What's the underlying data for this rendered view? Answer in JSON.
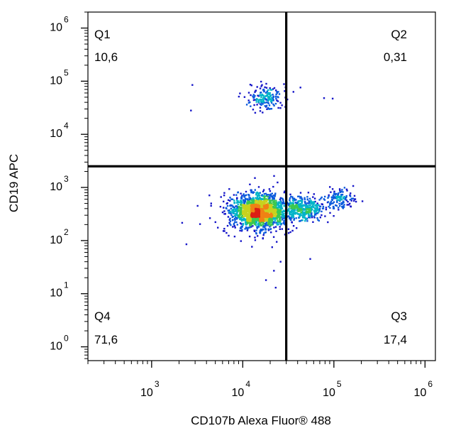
{
  "chart_data": {
    "type": "scatter",
    "title": "",
    "xlabel": "CD107b Alexa Fluor® 488",
    "ylabel": "CD19 APC",
    "x_scale": "log",
    "y_scale": "log",
    "xlim": [
      200,
      1300000
    ],
    "ylim": [
      0.55,
      2000000
    ],
    "x_ticks": [
      {
        "base": "10",
        "exp": "3",
        "value": 1000
      },
      {
        "base": "10",
        "exp": "4",
        "value": 10000
      },
      {
        "base": "10",
        "exp": "5",
        "value": 100000
      },
      {
        "base": "10",
        "exp": "6",
        "value": 1000000
      }
    ],
    "y_ticks": [
      {
        "base": "10",
        "exp": "0",
        "value": 1
      },
      {
        "base": "10",
        "exp": "1",
        "value": 10
      },
      {
        "base": "10",
        "exp": "2",
        "value": 100
      },
      {
        "base": "10",
        "exp": "3",
        "value": 1000
      },
      {
        "base": "10",
        "exp": "4",
        "value": 10000
      },
      {
        "base": "10",
        "exp": "5",
        "value": 100000
      },
      {
        "base": "10",
        "exp": "6",
        "value": 1000000
      }
    ],
    "gates": {
      "x": 30000,
      "y": 2500
    },
    "quadrants": [
      {
        "name": "Q1",
        "value": "10,6",
        "position": "top-left"
      },
      {
        "name": "Q2",
        "value": "0,31",
        "position": "top-right"
      },
      {
        "name": "Q3",
        "value": "17,4",
        "position": "bottom-right"
      },
      {
        "name": "Q4",
        "value": "71,6",
        "position": "bottom-left"
      }
    ],
    "populations": [
      {
        "x": 15000,
        "y": 360,
        "sx": 0.13,
        "sy": 0.13,
        "n": 1250
      },
      {
        "x": 16000,
        "y": 330,
        "sx": 0.21,
        "sy": 0.21,
        "n": 650
      },
      {
        "x": 45000,
        "y": 390,
        "sx": 0.13,
        "sy": 0.11,
        "n": 380
      },
      {
        "x": 115000,
        "y": 600,
        "sx": 0.08,
        "sy": 0.09,
        "n": 130
      },
      {
        "x": 18000,
        "y": 50000,
        "sx": 0.09,
        "sy": 0.12,
        "n": 180
      }
    ],
    "outliers": [
      [
        2800,
        85000
      ],
      [
        2700,
        28000
      ],
      [
        43000,
        76000
      ],
      [
        78000,
        48000
      ],
      [
        97000,
        47000
      ],
      [
        7500,
        600
      ],
      [
        4500,
        500
      ],
      [
        3200,
        450
      ],
      [
        23000,
        13
      ],
      [
        55000,
        45
      ],
      [
        22000,
        27
      ],
      [
        30000,
        20000
      ],
      [
        36000,
        63000
      ],
      [
        18000,
        18
      ],
      [
        26000,
        40
      ]
    ],
    "colormap": [
      "#1414c8",
      "#0a5adc",
      "#00b4c8",
      "#3cc850",
      "#c8d21e",
      "#f08214",
      "#dc1e14"
    ],
    "grid": false,
    "legend": "none"
  }
}
